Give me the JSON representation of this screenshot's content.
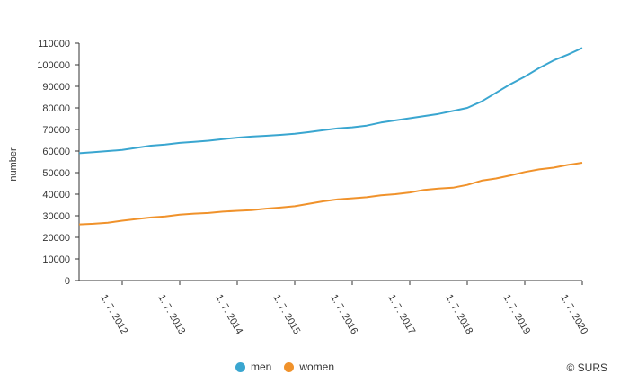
{
  "chart_data": {
    "type": "line",
    "ylabel": "number",
    "ylim": [
      0,
      110000
    ],
    "y_ticks": [
      "0",
      "10000",
      "20000",
      "30000",
      "40000",
      "50000",
      "60000",
      "70000",
      "80000",
      "90000",
      "100000",
      "110000"
    ],
    "x_tick_labels": [
      "1. 7. 2012",
      "1. 7. 2013",
      "1. 7. 2014",
      "1. 7. 2015",
      "1. 7. 2016",
      "1. 7. 2017",
      "1. 7. 2018",
      "1. 7. 2019",
      "1. 7. 2020"
    ],
    "x": [
      "2011-10",
      "2012-01",
      "2012-04",
      "2012-07",
      "2012-10",
      "2013-01",
      "2013-04",
      "2013-07",
      "2013-10",
      "2014-01",
      "2014-04",
      "2014-07",
      "2014-10",
      "2015-01",
      "2015-04",
      "2015-07",
      "2015-10",
      "2016-01",
      "2016-04",
      "2016-07",
      "2016-10",
      "2017-01",
      "2017-04",
      "2017-07",
      "2017-10",
      "2018-01",
      "2018-04",
      "2018-07",
      "2018-10",
      "2019-01",
      "2019-04",
      "2019-07",
      "2019-10",
      "2020-01",
      "2020-04",
      "2020-07"
    ],
    "series": [
      {
        "name": "men",
        "color": "#3aa6d0",
        "values": [
          59000,
          59500,
          60000,
          60500,
          61500,
          62500,
          63000,
          63800,
          64300,
          64800,
          65500,
          66200,
          66700,
          67100,
          67500,
          68000,
          68800,
          69700,
          70500,
          71000,
          71800,
          73200,
          74200,
          75200,
          76200,
          77200,
          78600,
          80000,
          83000,
          87000,
          91000,
          94500,
          98500,
          102000,
          104700,
          107800
        ]
      },
      {
        "name": "women",
        "color": "#f0922b",
        "values": [
          26000,
          26300,
          26800,
          27700,
          28500,
          29200,
          29700,
          30500,
          31000,
          31300,
          31900,
          32300,
          32600,
          33300,
          33800,
          34400,
          35600,
          36700,
          37600,
          38100,
          38600,
          39500,
          40000,
          40800,
          42000,
          42600,
          43000,
          44300,
          46300,
          47300,
          48700,
          50300,
          51500,
          52300,
          53600,
          54600
        ]
      }
    ],
    "grid": false,
    "legend_position": "bottom"
  },
  "credit": "© SURS"
}
